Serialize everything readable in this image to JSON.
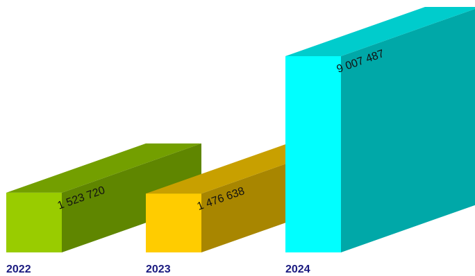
{
  "chart_data": {
    "type": "bar",
    "style": "3d",
    "categories": [
      "2022",
      "2023",
      "2024"
    ],
    "values": [
      1523720,
      1476638,
      9007487
    ],
    "value_labels": [
      "1 523 720",
      "1 476 638",
      "9 007 487"
    ],
    "ylim": [
      0,
      9007487
    ],
    "grid": false,
    "legend": "none",
    "colors": [
      {
        "front": "#99cc00",
        "top": "#739f00",
        "side": "#5f8600"
      },
      {
        "front": "#ffcc00",
        "top": "#c8a000",
        "side": "#a88600"
      },
      {
        "front": "#00ffff",
        "top": "#00cccc",
        "side": "#00a8a8"
      }
    ],
    "category_label_color": "#1a1a80"
  }
}
